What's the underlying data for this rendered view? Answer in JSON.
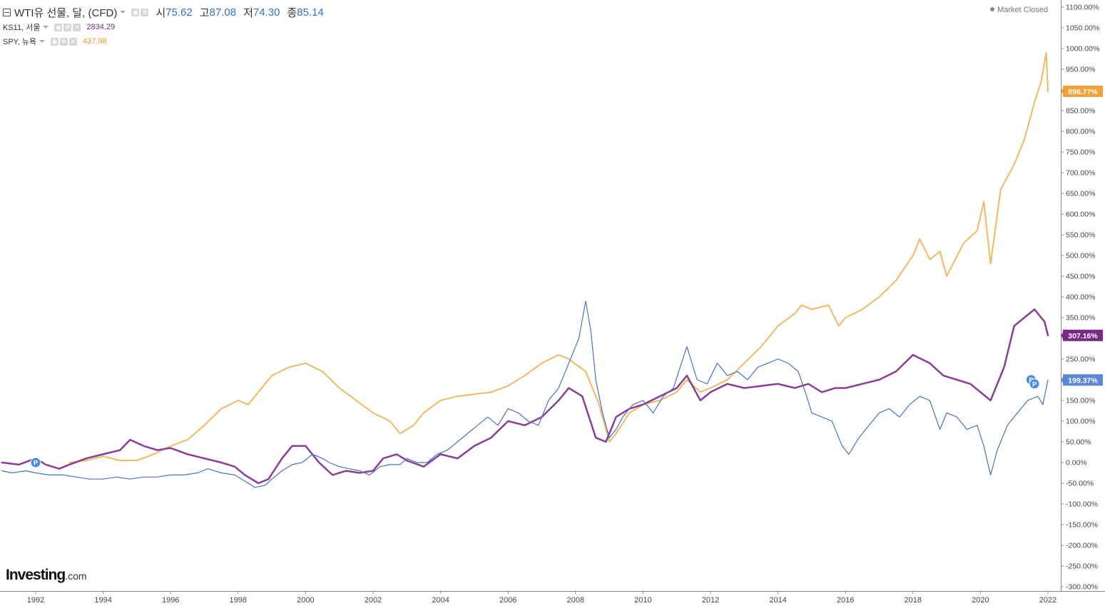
{
  "header": {
    "main_title": "WTI유 선물, 달, (CFD)",
    "ohlc": [
      {
        "label": "시",
        "value": "75.62"
      },
      {
        "label": "고",
        "value": "87.08"
      },
      {
        "label": "저",
        "value": "74.30"
      },
      {
        "label": "종",
        "value": "85.14"
      }
    ],
    "ks11_name": "KS11, 서울",
    "ks11_value": "2834.29",
    "spy_name": "SPY, 뉴욕",
    "spy_value": "437.98",
    "market_status": "Market Closed"
  },
  "brand": {
    "name": "Investing",
    "suffix": ".com"
  },
  "colors": {
    "wti": "#4a72c2",
    "ks11": "#8a3e96",
    "spy": "#f1b961",
    "wti_tag": "#5d87d6",
    "ks11_tag": "#7a2a86",
    "spy_tag": "#f0a13a"
  },
  "chart_data": {
    "type": "line",
    "ylim": [
      -310,
      1110
    ],
    "xlim": [
      1991.0,
      2022.4
    ],
    "x_ticks": [
      "1992",
      "1994",
      "1996",
      "1998",
      "2000",
      "2002",
      "2004",
      "2006",
      "2008",
      "2010",
      "2012",
      "2014",
      "2016",
      "2018",
      "2020",
      "2022"
    ],
    "y_ticks": [
      "1100.00%",
      "1050.00%",
      "1000.00%",
      "950.00%",
      "900.00%",
      "850.00%",
      "800.00%",
      "750.00%",
      "700.00%",
      "650.00%",
      "600.00%",
      "550.00%",
      "500.00%",
      "450.00%",
      "400.00%",
      "350.00%",
      "300.00%",
      "250.00%",
      "200.00%",
      "150.00%",
      "100.00%",
      "50.00%",
      "0.00%",
      "-50.00%",
      "-100.00%",
      "-150.00%",
      "-200.00%",
      "-250.00%",
      "-300.00%"
    ],
    "last_value_tags": [
      {
        "series": "SPY",
        "label": "896.77%",
        "value": 896.77
      },
      {
        "series": "KS11",
        "label": "307.16%",
        "value": 307.16
      },
      {
        "series": "WTI",
        "label": "199.37%",
        "value": 199.37
      }
    ],
    "markers": [
      {
        "x": 1992.0,
        "y": 0,
        "text": "P"
      },
      {
        "x": 2021.5,
        "y": 200,
        "text": "P"
      },
      {
        "x": 2021.6,
        "y": 190,
        "text": "P"
      }
    ],
    "series": [
      {
        "key": "SPY",
        "color": "#f1b961",
        "width": 2,
        "x": [
          1993.0,
          1993.5,
          1994.0,
          1994.5,
          1995.0,
          1995.5,
          1996.0,
          1996.5,
          1997.0,
          1997.5,
          1998.0,
          1998.3,
          1998.7,
          1999.0,
          1999.5,
          2000.0,
          2000.5,
          2001.0,
          2001.5,
          2002.0,
          2002.5,
          2002.8,
          2003.2,
          2003.5,
          2004.0,
          2004.5,
          2005.0,
          2005.5,
          2006.0,
          2006.5,
          2007.0,
          2007.5,
          2007.8,
          2008.3,
          2008.7,
          2009.0,
          2009.2,
          2009.6,
          2010.0,
          2010.5,
          2011.0,
          2011.3,
          2011.7,
          2012.0,
          2012.5,
          2013.0,
          2013.5,
          2014.0,
          2014.5,
          2014.7,
          2015.0,
          2015.5,
          2015.8,
          2016.0,
          2016.5,
          2017.0,
          2017.5,
          2018.0,
          2018.2,
          2018.5,
          2018.8,
          2019.0,
          2019.5,
          2019.9,
          2020.1,
          2020.3,
          2020.6,
          2021.0,
          2021.3,
          2021.6,
          2021.8,
          2021.95,
          2022.0
        ],
        "y": [
          0,
          5,
          15,
          5,
          5,
          20,
          40,
          55,
          90,
          130,
          150,
          140,
          180,
          210,
          230,
          240,
          220,
          180,
          150,
          120,
          100,
          70,
          90,
          120,
          150,
          160,
          165,
          170,
          185,
          210,
          240,
          260,
          250,
          220,
          140,
          50,
          70,
          120,
          140,
          150,
          170,
          200,
          170,
          180,
          200,
          240,
          280,
          330,
          360,
          380,
          370,
          380,
          330,
          350,
          370,
          400,
          440,
          500,
          540,
          490,
          510,
          450,
          530,
          560,
          630,
          480,
          660,
          720,
          780,
          870,
          920,
          990,
          896.77
        ]
      },
      {
        "key": "KS11",
        "color": "#8a3e96",
        "width": 2.5,
        "x": [
          1991.0,
          1991.5,
          1992.0,
          1992.3,
          1992.7,
          1993.0,
          1993.5,
          1994.0,
          1994.5,
          1994.8,
          1995.2,
          1995.6,
          1996.0,
          1996.5,
          1997.0,
          1997.5,
          1997.9,
          1998.2,
          1998.6,
          1998.9,
          1999.3,
          1999.6,
          2000.0,
          2000.4,
          2000.8,
          2001.2,
          2001.6,
          2002.0,
          2002.3,
          2002.7,
          2003.0,
          2003.5,
          2004.0,
          2004.5,
          2005.0,
          2005.5,
          2006.0,
          2006.5,
          2007.0,
          2007.5,
          2007.8,
          2008.2,
          2008.6,
          2008.9,
          2009.2,
          2009.6,
          2010.0,
          2010.5,
          2011.0,
          2011.3,
          2011.7,
          2012.0,
          2012.5,
          2013.0,
          2013.5,
          2014.0,
          2014.5,
          2014.9,
          2015.3,
          2015.7,
          2016.0,
          2016.5,
          2017.0,
          2017.5,
          2018.0,
          2018.5,
          2018.9,
          2019.3,
          2019.7,
          2020.0,
          2020.3,
          2020.7,
          2021.0,
          2021.3,
          2021.6,
          2021.9,
          2022.0
        ],
        "y": [
          0,
          -5,
          10,
          -5,
          -15,
          -5,
          10,
          20,
          30,
          55,
          40,
          30,
          35,
          20,
          10,
          0,
          -10,
          -30,
          -50,
          -40,
          10,
          40,
          40,
          0,
          -30,
          -20,
          -25,
          -20,
          10,
          20,
          5,
          -10,
          20,
          10,
          40,
          60,
          100,
          90,
          110,
          150,
          180,
          160,
          60,
          50,
          110,
          130,
          140,
          160,
          180,
          210,
          150,
          170,
          190,
          180,
          185,
          190,
          180,
          190,
          170,
          180,
          180,
          190,
          200,
          220,
          260,
          240,
          210,
          200,
          190,
          170,
          150,
          230,
          330,
          350,
          370,
          340,
          307.16
        ]
      },
      {
        "key": "WTI",
        "color": "#4a72c2",
        "width": 1.2,
        "x": [
          1991.0,
          1991.3,
          1991.7,
          1992.0,
          1992.4,
          1992.8,
          1993.2,
          1993.6,
          1994.0,
          1994.4,
          1994.8,
          1995.2,
          1995.6,
          1996.0,
          1996.4,
          1996.8,
          1997.1,
          1997.5,
          1997.9,
          1998.2,
          1998.5,
          1998.8,
          1999.0,
          1999.3,
          1999.6,
          1999.9,
          2000.2,
          2000.5,
          2000.7,
          2001.0,
          2001.3,
          2001.6,
          2001.9,
          2002.2,
          2002.5,
          2002.8,
          2003.0,
          2003.3,
          2003.6,
          2003.9,
          2004.2,
          2004.5,
          2004.8,
          2005.1,
          2005.4,
          2005.7,
          2006.0,
          2006.3,
          2006.6,
          2006.9,
          2007.2,
          2007.5,
          2007.8,
          2008.1,
          2008.3,
          2008.45,
          2008.6,
          2008.8,
          2009.0,
          2009.2,
          2009.4,
          2009.7,
          2010.0,
          2010.3,
          2010.6,
          2010.9,
          2011.1,
          2011.3,
          2011.6,
          2011.9,
          2012.2,
          2012.5,
          2012.8,
          2013.1,
          2013.4,
          2013.7,
          2014.0,
          2014.3,
          2014.6,
          2014.85,
          2015.0,
          2015.3,
          2015.6,
          2015.9,
          2016.1,
          2016.4,
          2016.7,
          2017.0,
          2017.3,
          2017.6,
          2017.9,
          2018.2,
          2018.5,
          2018.8,
          2019.0,
          2019.3,
          2019.6,
          2019.9,
          2020.1,
          2020.3,
          2020.5,
          2020.8,
          2021.1,
          2021.4,
          2021.7,
          2021.85,
          2022.0
        ],
        "y": [
          -20,
          -25,
          -20,
          -25,
          -30,
          -30,
          -35,
          -40,
          -40,
          -35,
          -40,
          -35,
          -35,
          -30,
          -30,
          -25,
          -15,
          -25,
          -30,
          -45,
          -60,
          -55,
          -40,
          -20,
          -5,
          0,
          20,
          10,
          0,
          -10,
          -15,
          -20,
          -30,
          -10,
          -5,
          -5,
          10,
          0,
          0,
          20,
          30,
          50,
          70,
          90,
          110,
          90,
          130,
          120,
          100,
          90,
          150,
          180,
          240,
          300,
          390,
          320,
          200,
          120,
          60,
          80,
          110,
          140,
          150,
          120,
          160,
          180,
          230,
          280,
          200,
          190,
          240,
          210,
          220,
          200,
          230,
          240,
          250,
          240,
          220,
          160,
          120,
          110,
          100,
          40,
          20,
          60,
          90,
          120,
          130,
          110,
          140,
          160,
          150,
          80,
          120,
          110,
          80,
          90,
          40,
          -30,
          30,
          90,
          120,
          150,
          160,
          140,
          199.37
        ]
      }
    ]
  }
}
